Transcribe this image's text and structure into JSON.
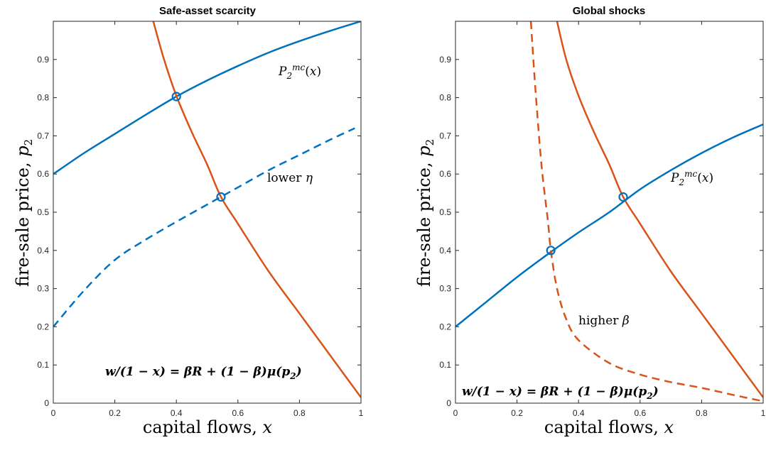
{
  "colors": {
    "blue": "#0072BD",
    "orange": "#D95319",
    "axis": "#262626"
  },
  "chart_data": [
    {
      "type": "line",
      "title": "Safe-asset scarcity",
      "xlabel": "capital flows, x",
      "ylabel": "fire-sale price, p2",
      "xlim": [
        0,
        1
      ],
      "ylim": [
        0,
        1
      ],
      "x_ticks": [
        "0",
        "0.2",
        "0.4",
        "0.6",
        "0.8",
        "1"
      ],
      "y_ticks": [
        "0",
        "0.1",
        "0.2",
        "0.3",
        "0.4",
        "0.5",
        "0.6",
        "0.7",
        "0.8",
        "0.9"
      ],
      "grid": false,
      "series": [
        {
          "name": "P2^mc(x)",
          "color": "#0072BD",
          "style": "solid",
          "x": [
            0,
            0.1,
            0.2,
            0.3,
            0.4,
            0.5,
            0.6,
            0.7,
            0.8,
            0.9,
            1.0
          ],
          "y": [
            0.6,
            0.655,
            0.705,
            0.755,
            0.803,
            0.845,
            0.883,
            0.918,
            0.948,
            0.975,
            1.0
          ]
        },
        {
          "name": "lower η",
          "color": "#0072BD",
          "style": "dashed",
          "x": [
            0,
            0.1,
            0.2,
            0.3,
            0.4,
            0.5,
            0.6,
            0.7,
            0.8,
            0.9,
            0.98
          ],
          "y": [
            0.2,
            0.295,
            0.375,
            0.428,
            0.475,
            0.52,
            0.565,
            0.61,
            0.65,
            0.69,
            0.72
          ]
        },
        {
          "name": "w/(1-x) = βR + (1-β)μ(p2)",
          "color": "#D95319",
          "style": "solid",
          "x": [
            0.325,
            0.36,
            0.4,
            0.45,
            0.5,
            0.545,
            0.6,
            0.7,
            0.8,
            0.9,
            0.95,
            1.0
          ],
          "y": [
            1.0,
            0.9,
            0.805,
            0.71,
            0.625,
            0.54,
            0.47,
            0.345,
            0.235,
            0.125,
            0.07,
            0.015
          ]
        }
      ],
      "markers": [
        {
          "x": 0.4,
          "y": 0.803
        },
        {
          "x": 0.545,
          "y": 0.54
        }
      ],
      "annotations": [
        {
          "text": "P2mc(x)",
          "x": 0.73,
          "y": 0.855
        },
        {
          "text": "lower η",
          "x": 0.7,
          "y": 0.575
        },
        {
          "text": "w/(1 − x) = βR + (1 − β)μ(p2)",
          "x": 0.17,
          "y": 0.085
        }
      ]
    },
    {
      "type": "line",
      "title": "Global shocks",
      "xlabel": "capital flows, x",
      "ylabel": "fire-sale price, p2",
      "xlim": [
        0,
        1
      ],
      "ylim": [
        0,
        1
      ],
      "x_ticks": [
        "0",
        "0.2",
        "0.4",
        "0.6",
        "0.8",
        "1"
      ],
      "y_ticks": [
        "0",
        "0.1",
        "0.2",
        "0.3",
        "0.4",
        "0.5",
        "0.6",
        "0.7",
        "0.8",
        "0.9"
      ],
      "grid": false,
      "series": [
        {
          "name": "P2^mc(x)",
          "color": "#0072BD",
          "style": "solid",
          "x": [
            0,
            0.1,
            0.2,
            0.3,
            0.4,
            0.5,
            0.6,
            0.7,
            0.8,
            0.9,
            1.0
          ],
          "y": [
            0.2,
            0.265,
            0.33,
            0.39,
            0.447,
            0.5,
            0.56,
            0.61,
            0.655,
            0.695,
            0.73
          ]
        },
        {
          "name": "w/(1-x) = βR + (1-β)μ(p2)",
          "color": "#D95319",
          "style": "solid",
          "x": [
            0.33,
            0.36,
            0.4,
            0.45,
            0.5,
            0.545,
            0.6,
            0.7,
            0.8,
            0.9,
            0.95,
            1.0
          ],
          "y": [
            1.0,
            0.9,
            0.805,
            0.71,
            0.625,
            0.54,
            0.47,
            0.345,
            0.235,
            0.125,
            0.07,
            0.015
          ]
        },
        {
          "name": "higher β",
          "color": "#D95319",
          "style": "dashed",
          "x": [
            0.245,
            0.26,
            0.28,
            0.3,
            0.31,
            0.33,
            0.36,
            0.4,
            0.5,
            0.6,
            0.7,
            0.8,
            0.9,
            1.0
          ],
          "y": [
            1.0,
            0.82,
            0.62,
            0.48,
            0.4,
            0.3,
            0.22,
            0.165,
            0.105,
            0.075,
            0.055,
            0.04,
            0.022,
            0.005
          ]
        }
      ],
      "markers": [
        {
          "x": 0.31,
          "y": 0.4
        },
        {
          "x": 0.545,
          "y": 0.54
        }
      ],
      "annotations": [
        {
          "text": "P2mc(x)",
          "x": 0.7,
          "y": 0.595
        },
        {
          "text": "higher β",
          "x": 0.4,
          "y": 0.215
        },
        {
          "text": "w/(1 − x) = βR + (1 − β)μ(p2)",
          "x": 0.02,
          "y": 0.03
        }
      ]
    }
  ]
}
